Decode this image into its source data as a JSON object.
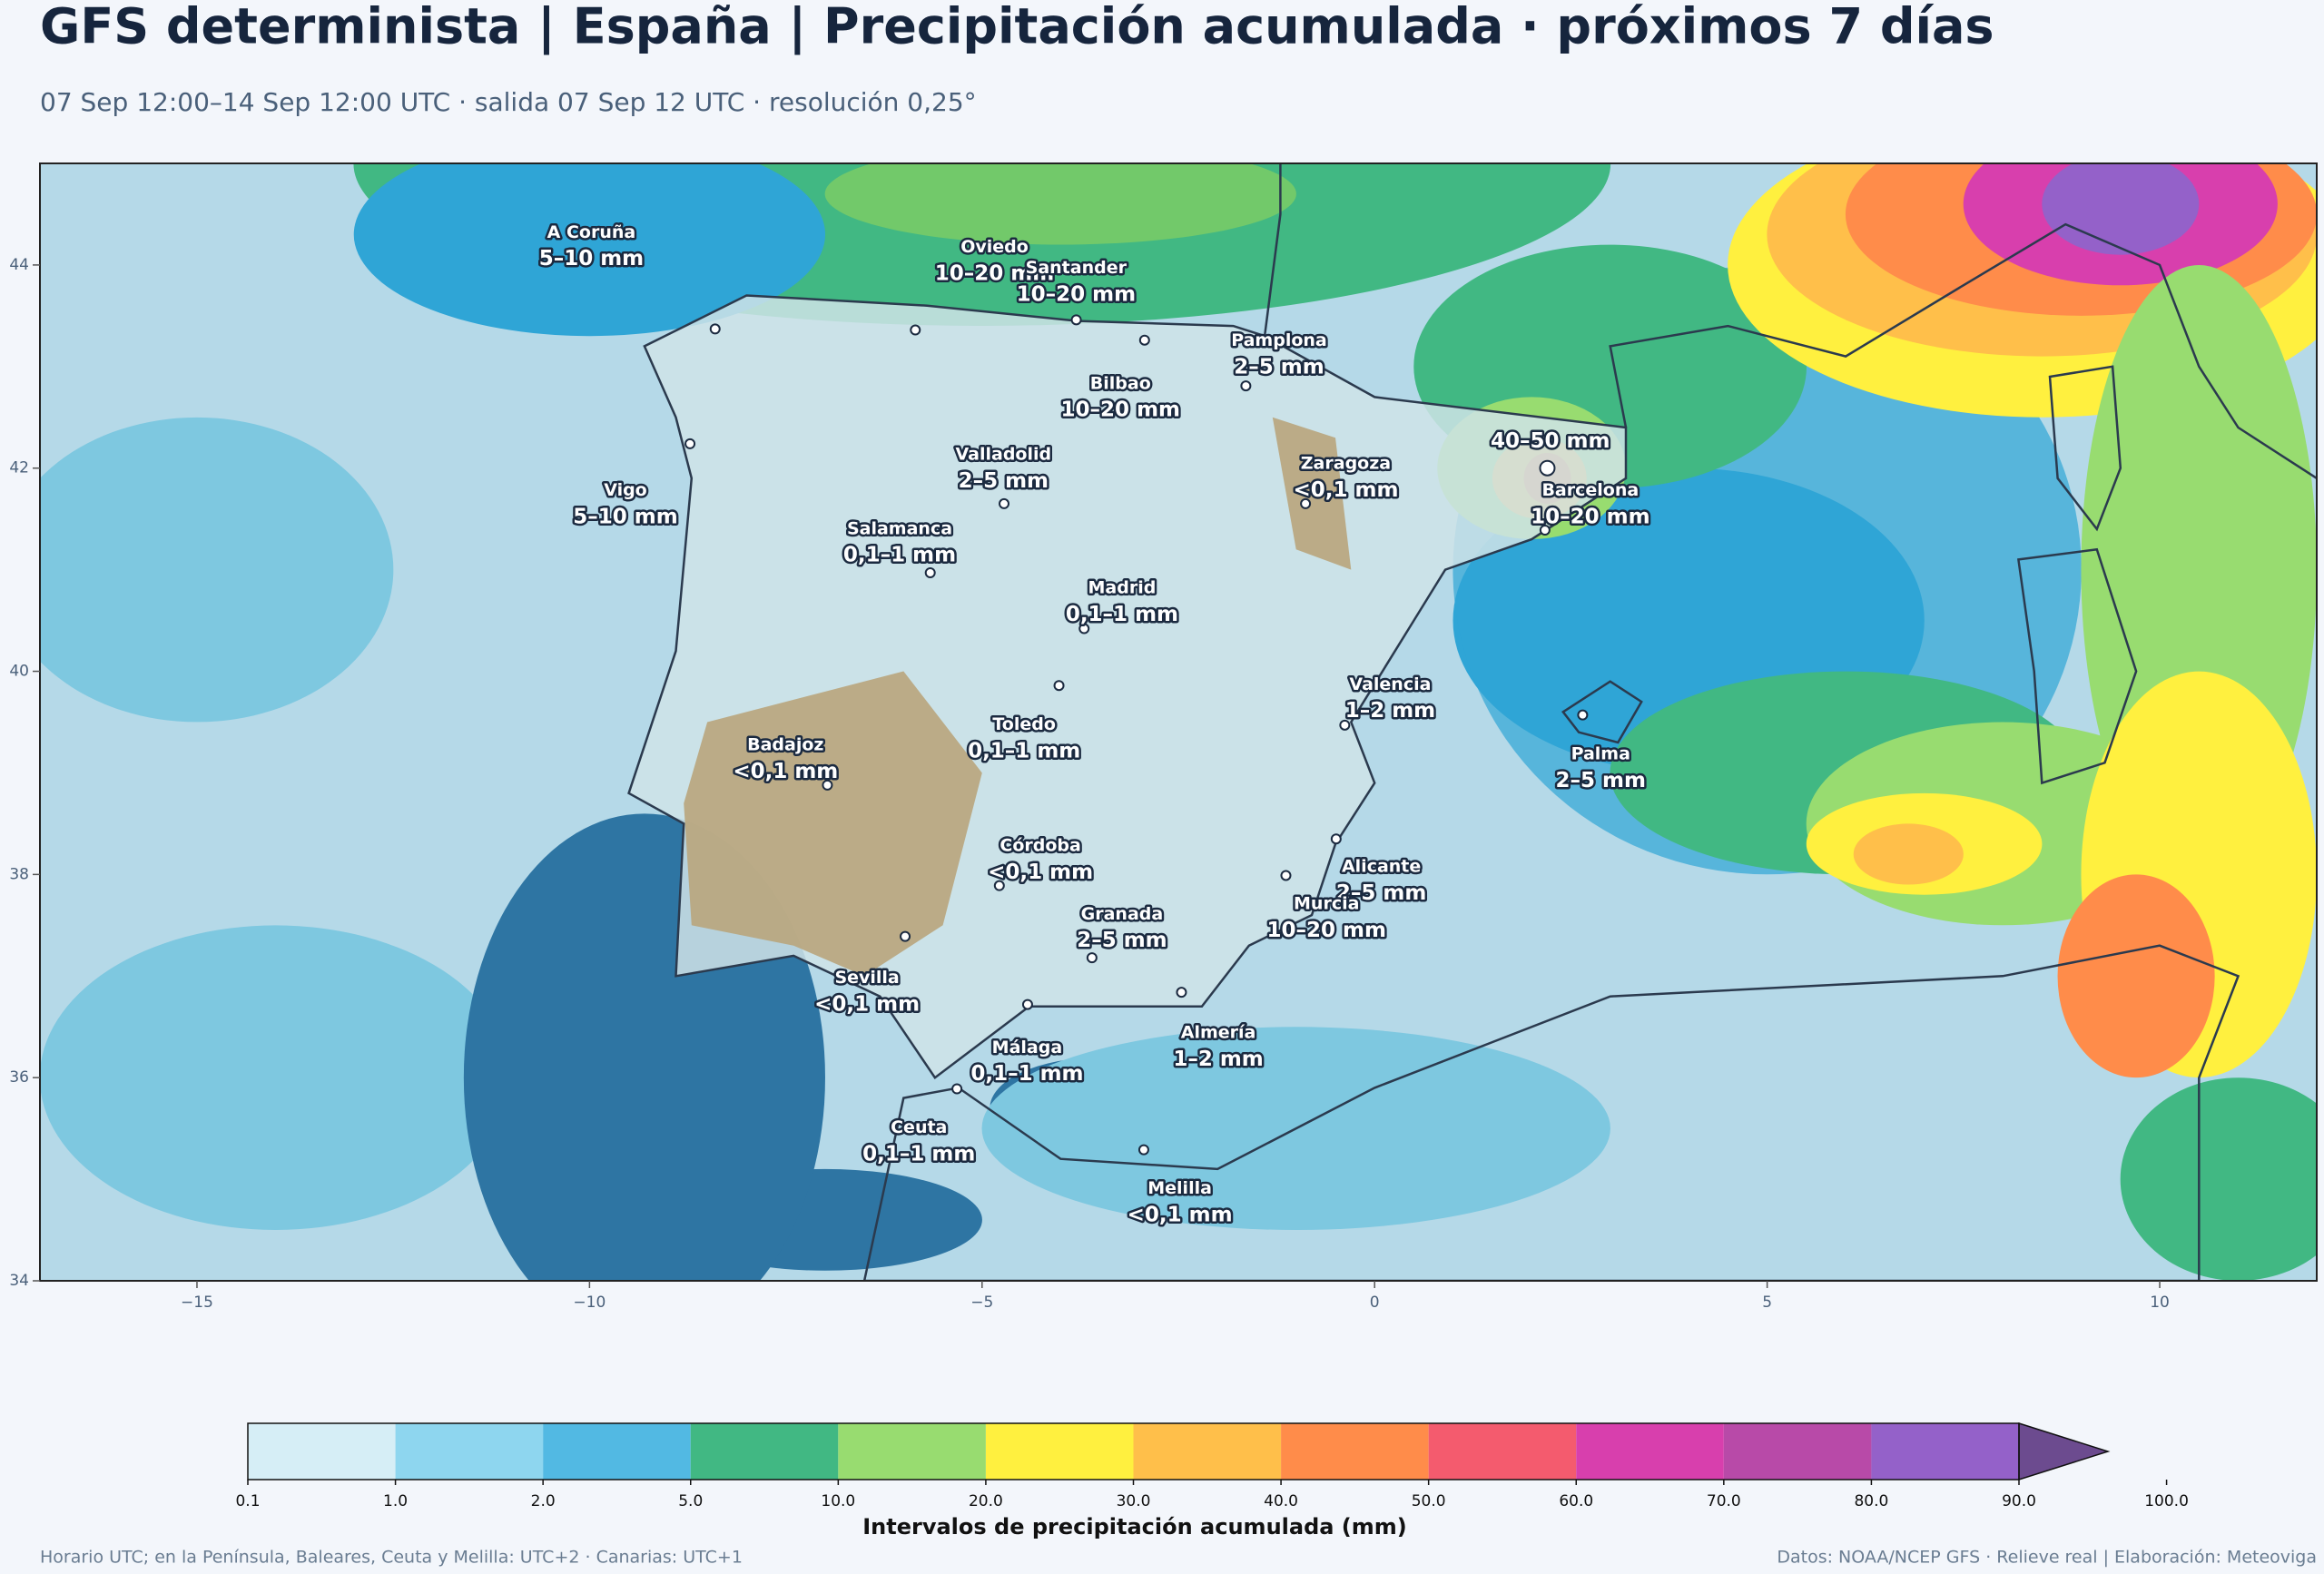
{
  "header": {
    "title": "GFS determinista | España | Precipitación acumulada · próximos 7 días",
    "subtitle": "07 Sep 12:00–14 Sep 12:00 UTC · salida 07 Sep 12 UTC · resolución 0,25°"
  },
  "map": {
    "xlim": [
      -17,
      12
    ],
    "ylim": [
      34,
      45
    ],
    "xticks": [
      {
        "value": -15,
        "label": "−15"
      },
      {
        "value": -10,
        "label": "−10"
      },
      {
        "value": -5,
        "label": "−5"
      },
      0,
      5,
      10
    ],
    "yticks": [
      34,
      36,
      38,
      40,
      42,
      44
    ],
    "cities": [
      {
        "name": "A Coruña",
        "value": "5–10 mm"
      },
      {
        "name": "Oviedo",
        "value": "10–20 mm"
      },
      {
        "name": "Santander",
        "value": "10–20 mm"
      },
      {
        "name": "Pamplona",
        "value": "2–5 mm"
      },
      {
        "name": "Bilbao",
        "value": "10–20 mm"
      },
      {
        "name": "Valladolid",
        "value": "2–5 mm"
      },
      {
        "name": "Zaragoza",
        "value": "<0,1 mm"
      },
      {
        "value": "40–50 mm"
      },
      {
        "name": "Barcelona",
        "value": "10–20 mm"
      },
      {
        "name": "Vigo",
        "value": "5–10 mm"
      },
      {
        "name": "Salamanca",
        "value": "0,1–1 mm"
      },
      {
        "name": "Madrid",
        "value": "0,1–1 mm"
      },
      {
        "name": "Valencia",
        "value": "1–2 mm"
      },
      {
        "name": "Toledo",
        "value": "0,1–1 mm"
      },
      {
        "name": "Badajoz",
        "value": "<0,1 mm"
      },
      {
        "name": "Palma",
        "value": "2–5 mm"
      },
      {
        "name": "Córdoba",
        "value": "<0,1 mm"
      },
      {
        "name": "Alicante",
        "value": "2–5 mm"
      },
      {
        "name": "Murcia",
        "value": "10–20 mm"
      },
      {
        "name": "Granada",
        "value": "2–5 mm"
      },
      {
        "name": "Sevilla",
        "value": "<0,1 mm"
      },
      {
        "name": "Almería",
        "value": "1–2 mm"
      },
      {
        "name": "Málaga",
        "value": "0,1–1 mm"
      },
      {
        "name": "Ceuta",
        "value": "0,1–1 mm"
      },
      {
        "name": "Melilla",
        "value": "<0,1 mm"
      }
    ]
  },
  "colorbar": {
    "label": "Intervalos de precipitación acumulada (mm)",
    "ticks": [
      0.1,
      {
        "value": 1,
        "label": "1.0"
      },
      {
        "value": 2,
        "label": "2.0"
      },
      {
        "value": 5,
        "label": "5.0"
      },
      {
        "value": 10,
        "label": "10.0"
      },
      {
        "value": 20,
        "label": "20.0"
      },
      {
        "value": 30,
        "label": "30.0"
      },
      {
        "value": 40,
        "label": "40.0"
      },
      {
        "value": 50,
        "label": "50.0"
      },
      {
        "value": 60,
        "label": "60.0"
      },
      {
        "value": 70,
        "label": "70.0"
      },
      {
        "value": 80,
        "label": "80.0"
      },
      {
        "value": 90,
        "label": "90.0"
      },
      {
        "value": 100,
        "label": "100.0"
      }
    ],
    "colors": [
      "#d6eef6",
      "#8ed6ef",
      "#52b9e3",
      "#41b883",
      "#98dc70",
      "#fff03f",
      "#ffbf4a",
      "#ff8c4a",
      "#f45b6e",
      "#d83fad",
      "#b84aa8",
      "#9461c9",
      "#6c4b8f"
    ]
  },
  "footer": {
    "left": "Horario UTC; en la Península, Baleares, Ceuta y Melilla: UTC+2 · Canarias: UTC+1",
    "right": "Datos: NOAA/NCEP GFS · Relieve real | Elaboración: Meteoviga"
  }
}
